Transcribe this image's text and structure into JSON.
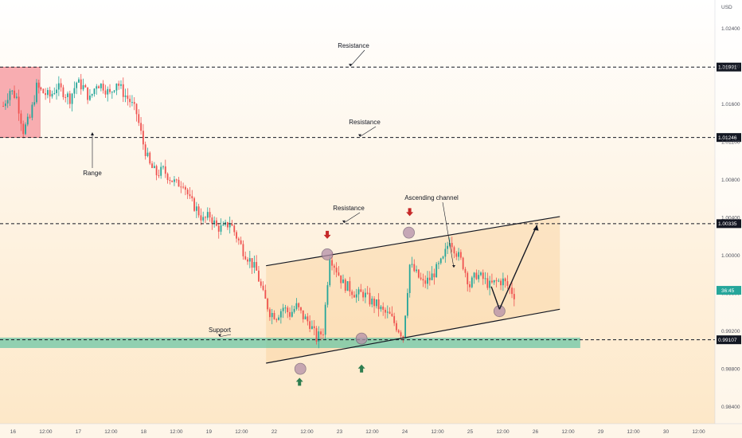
{
  "chart_data": {
    "type": "candlestick",
    "currency_label": "USD",
    "price_scale": [
      "1.02400",
      "1.02000",
      "1.01600",
      "1.01200",
      "1.00800",
      "1.00400",
      "1.00000",
      "0.99600",
      "0.99200",
      "0.98800",
      "0.98400"
    ],
    "time_labels": [
      "16",
      "12:00",
      "17",
      "12:00",
      "18",
      "12:00",
      "19",
      "12:00",
      "22",
      "12:00",
      "23",
      "12:00",
      "24",
      "12:00",
      "25",
      "12:00",
      "26",
      "12:00",
      "29",
      "12:00",
      "30",
      "12:00"
    ],
    "ylim": [
      0.9822,
      1.027
    ],
    "levels": [
      {
        "name": "resistance-1",
        "value": 1.01991,
        "label": "1.01991",
        "annotation": "Resistance"
      },
      {
        "name": "resistance-2",
        "value": 1.01246,
        "label": "1.01246",
        "annotation": "Resistance"
      },
      {
        "name": "resistance-3",
        "value": 1.00335,
        "label": "1.00335",
        "annotation": "Resistance"
      },
      {
        "name": "support",
        "value": 0.99107,
        "label": "0.99107",
        "annotation": "Support"
      }
    ],
    "range_annotation": "Range",
    "channel_annotation": "Ascending channel",
    "current_price_label": "36:45",
    "support_zone": [
      0.9902,
      0.9913
    ],
    "range_box": {
      "x": [
        -5.8,
        3.3
      ],
      "y": [
        1.01246,
        1.01991
      ]
    },
    "channel": {
      "upper": {
        "from": [
          31.0,
          0.9989
        ],
        "to": [
          67.0,
          1.0041
        ]
      },
      "lower": {
        "from": [
          31.0,
          0.9886
        ],
        "to": [
          67.0,
          0.9943
        ]
      }
    },
    "candles_anchor_prices": [
      1.0158,
      1.0175,
      1.0167,
      1.0132,
      1.0145,
      1.0178,
      1.0172,
      1.0168,
      1.0178,
      1.0173,
      1.0166,
      1.0183,
      1.0178,
      1.0165,
      1.0182,
      1.0179,
      1.017,
      1.0184,
      1.0172,
      1.0163,
      1.015,
      1.0118,
      1.0095,
      1.0086,
      1.009,
      1.0082,
      1.0075,
      1.0078,
      1.0058,
      1.0049,
      1.0037,
      1.0042,
      1.003,
      1.0028,
      1.0035,
      1.002,
      1.0005,
      0.9995,
      0.9983,
      0.9958,
      0.994,
      0.9936,
      0.9945,
      0.9938,
      0.9946,
      0.9935,
      0.9928,
      0.9912,
      0.992,
      1.0,
      0.9985,
      0.997,
      0.9965,
      0.9958,
      0.996,
      0.9952,
      0.9948,
      0.994,
      0.9936,
      0.9925,
      0.9915,
      0.999,
      0.998,
      0.997,
      0.9975,
      0.9985,
      0.9995,
      1.0018,
      1.0003,
      0.999,
      0.9968,
      0.998,
      0.9975,
      0.9968,
      0.9972,
      0.9973,
      0.9965,
      0.9955
    ],
    "markers": [
      {
        "type": "down-arrow",
        "x": 38.5,
        "y": 1.002,
        "color": "#c62828"
      },
      {
        "type": "down-arrow",
        "x": 48.6,
        "y": 1.0044,
        "color": "#c62828"
      },
      {
        "type": "up-arrow",
        "x": 35.1,
        "y": 0.9868,
        "color": "#2e7d4f"
      },
      {
        "type": "up-arrow",
        "x": 42.7,
        "y": 0.9882,
        "color": "#2e7d4f"
      }
    ],
    "projection": {
      "from": [
        59.6,
        0.9943
      ],
      "mid": [
        63.3,
        0.9943
      ],
      "to": [
        59.6,
        1.0032
      ]
    }
  }
}
